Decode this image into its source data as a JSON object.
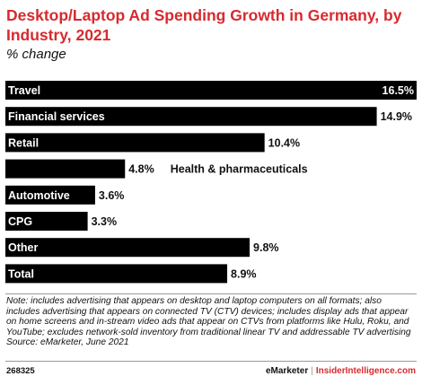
{
  "title": "Desktop/Laptop Ad Spending Growth in Germany, by Industry, 2021",
  "subtitle": "% change",
  "chart_data": {
    "type": "bar",
    "orientation": "horizontal",
    "categories": [
      "Travel",
      "Financial services",
      "Retail",
      "Health & pharmaceuticals",
      "Automotive",
      "CPG",
      "Other",
      "Total"
    ],
    "values": [
      16.5,
      14.9,
      10.4,
      4.8,
      3.6,
      3.3,
      9.8,
      8.9
    ],
    "value_labels": [
      "16.5%",
      "14.9%",
      "10.4%",
      "4.8%",
      "3.6%",
      "3.3%",
      "9.8%",
      "8.9%"
    ],
    "title": "Desktop/Laptop Ad Spending Growth in Germany, by Industry, 2021",
    "subtitle": "% change",
    "xlim": [
      0,
      16.5
    ],
    "grid": false,
    "legend": "none",
    "bar_color": "#000000",
    "label_color_on_bar": "#ffffff",
    "label_color_off_bar": "#111111"
  },
  "footnote": {
    "note": "Note: includes advertising that appears on desktop and laptop computers on all formats; also includes advertising that appears on connected TV (CTV) devices; includes display ads that appear on home screens and in-stream video ads that appear on CTVs from platforms like Hulu, Roku, and YouTube; excludes network-sold inventory from traditional linear TV and addressable TV advertising",
    "source": "Source: eMarketer, June 2021"
  },
  "chart_id": "268325",
  "brand": {
    "emarketer": "eMarketer",
    "separator": "|",
    "insider": "InsiderIntelligence.com"
  },
  "colors": {
    "title": "#d72a2f",
    "bars": "#000000",
    "rules": "#9a9a9a"
  }
}
